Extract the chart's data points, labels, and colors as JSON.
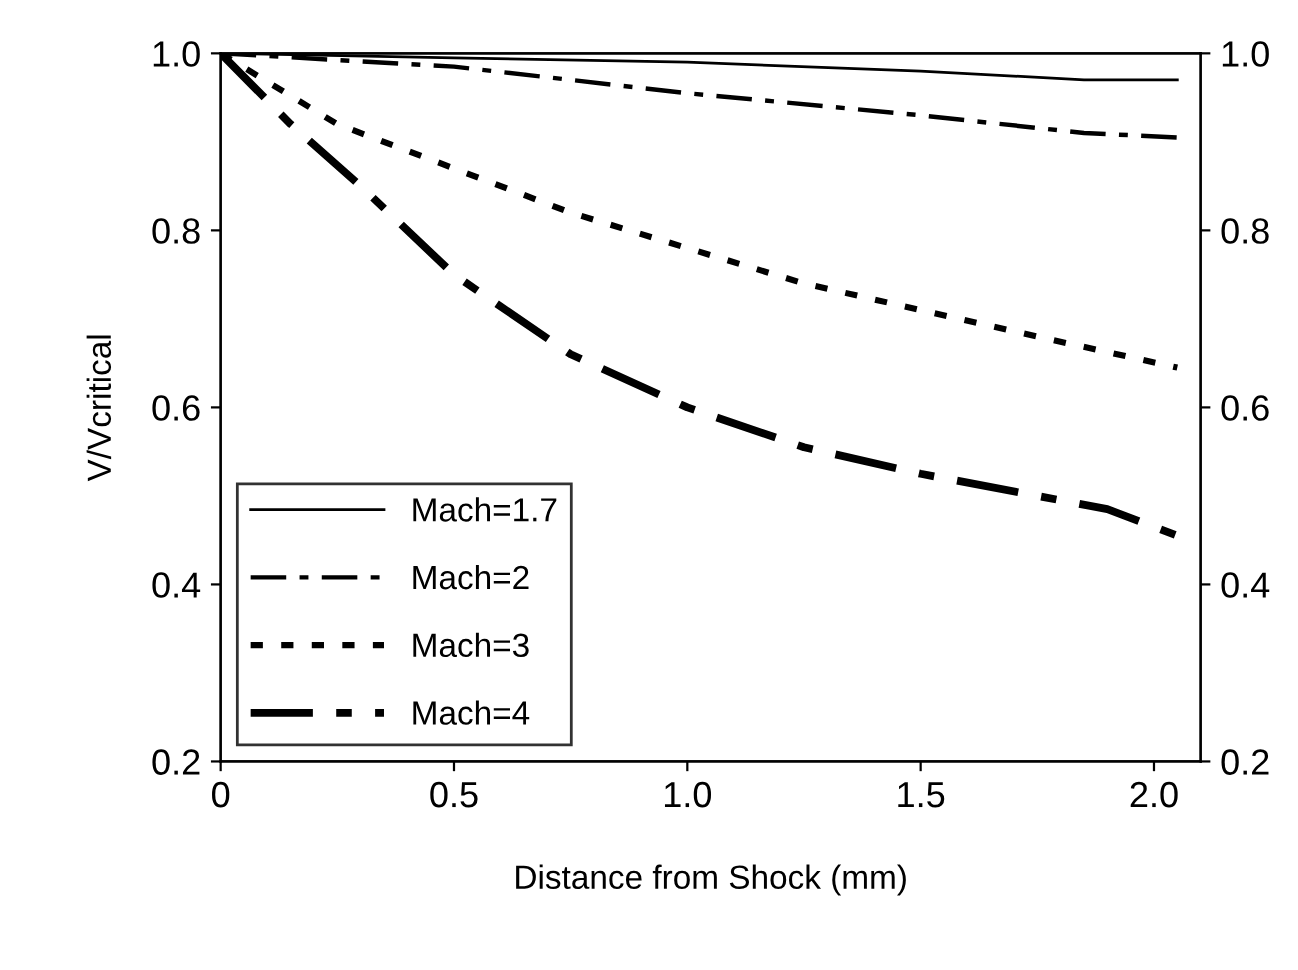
{
  "chart_data": {
    "type": "line",
    "xlabel": "Distance from Shock (mm)",
    "ylabel": "V/Vcritical",
    "xlim": [
      0,
      2.1
    ],
    "xticks": [
      0,
      0.5,
      {
        "value": 1,
        "label": "1.0"
      },
      1.5,
      {
        "value": 2,
        "label": "2.0"
      }
    ],
    "ylim": [
      0.2,
      1.0
    ],
    "yticks": [
      0.2,
      0.4,
      0.6,
      0.8,
      {
        "value": 1,
        "label": "1.0"
      }
    ],
    "y2lim": [
      0.2,
      1.0
    ],
    "y2ticks": [
      0.2,
      0.4,
      0.6,
      0.8,
      {
        "value": 1,
        "label": "1.0"
      }
    ],
    "grid": false,
    "legend": "bottom left",
    "series": [
      {
        "name": "Mach=1.7",
        "color": "#000000",
        "line_style": "solid",
        "x": [
          0,
          0.5,
          1.0,
          1.5,
          1.85,
          2.05
        ],
        "values": [
          1.0,
          0.995,
          0.99,
          0.98,
          0.97,
          0.97
        ]
      },
      {
        "name": "Mach=2",
        "color": "#000000",
        "line_style": "dashed",
        "x": [
          0,
          0.5,
          1.0,
          1.5,
          1.85,
          2.05
        ],
        "values": [
          1.0,
          0.985,
          0.955,
          0.93,
          0.91,
          0.905
        ]
      },
      {
        "name": "Mach=3",
        "color": "#000000",
        "line_style": "dotted",
        "x": [
          0,
          0.25,
          0.5,
          0.75,
          1.0,
          1.25,
          1.5,
          1.75,
          2.05
        ],
        "values": [
          1.0,
          0.92,
          0.87,
          0.82,
          0.78,
          0.74,
          0.71,
          0.68,
          0.645
        ]
      },
      {
        "name": "Mach=4",
        "color": "#000000",
        "line_style": "dashed",
        "x": [
          0,
          0.15,
          0.3,
          0.5,
          0.75,
          1.0,
          1.25,
          1.5,
          1.75,
          1.9,
          2.05
        ],
        "values": [
          1.0,
          0.92,
          0.85,
          0.75,
          0.66,
          0.6,
          0.555,
          0.525,
          0.5,
          0.485,
          0.455
        ]
      }
    ]
  }
}
